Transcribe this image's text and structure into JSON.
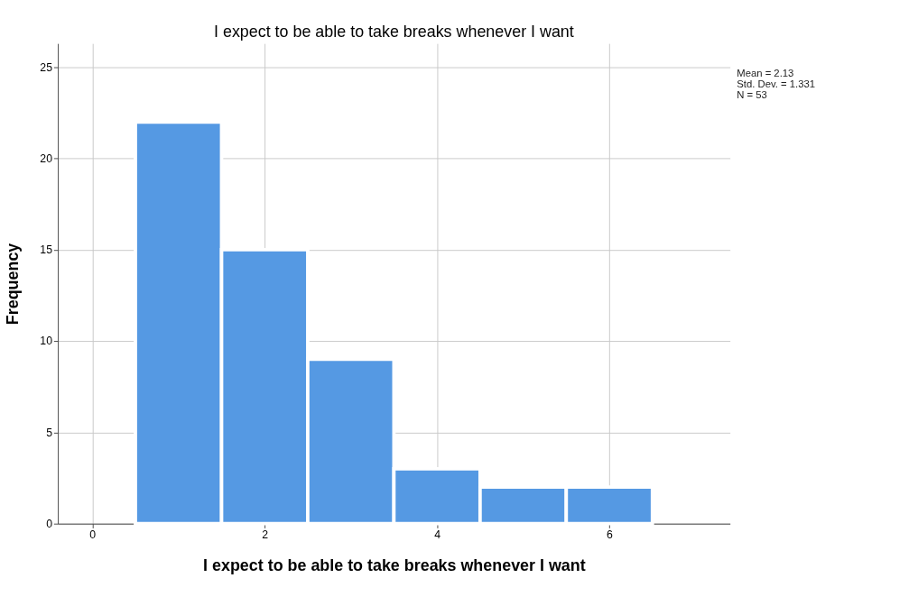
{
  "chart_data": {
    "type": "histogram",
    "title": "I expect to be able to take breaks whenever I want",
    "xlabel": "I expect to be able to take breaks whenever I want",
    "ylabel": "Frequency",
    "bins": [
      0.5,
      1.5,
      2.5,
      3.5,
      4.5,
      5.5,
      6.5
    ],
    "values": [
      22,
      15,
      9,
      3,
      2,
      2
    ],
    "color": "#5599e3",
    "xlim": [
      -0.4,
      7.4
    ],
    "xticks": [
      0,
      2,
      4,
      6
    ],
    "ylim": [
      0,
      26.3
    ],
    "yticks": [
      0,
      5,
      10,
      15,
      20,
      25
    ],
    "grid": true,
    "annotations": [
      "Mean = 2.13",
      "Std. Dev. = 1.331",
      "N = 53"
    ]
  }
}
